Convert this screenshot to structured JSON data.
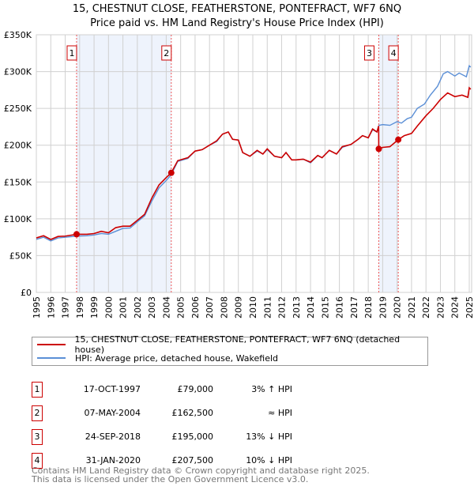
{
  "title": "15, CHESTNUT CLOSE, FEATHERSTONE, PONTEFRACT, WF7 6NQ",
  "subtitle": "Price paid vs. HM Land Registry's House Price Index (HPI)",
  "colors": {
    "property": "#cc0000",
    "hpi": "#5b8fd6",
    "shade": "#eef3fc"
  },
  "chart_data": {
    "type": "line",
    "xlim": [
      1995,
      2025.1
    ],
    "ylim": [
      0,
      350000
    ],
    "y_ticks": [
      {
        "v": 0,
        "label": "£0"
      },
      {
        "v": 50000,
        "label": "£50K"
      },
      {
        "v": 100000,
        "label": "£100K"
      },
      {
        "v": 150000,
        "label": "£150K"
      },
      {
        "v": 200000,
        "label": "£200K"
      },
      {
        "v": 250000,
        "label": "£250K"
      },
      {
        "v": 300000,
        "label": "£300K"
      },
      {
        "v": 350000,
        "label": "£350K"
      }
    ],
    "x_ticks": [
      "1995",
      "1996",
      "1997",
      "1998",
      "1999",
      "2000",
      "2001",
      "2002",
      "2003",
      "2004",
      "2005",
      "2006",
      "2007",
      "2008",
      "2009",
      "2010",
      "2011",
      "2012",
      "2013",
      "2014",
      "2015",
      "2016",
      "2017",
      "2018",
      "2019",
      "2020",
      "2021",
      "2022",
      "2023",
      "2024",
      "2025"
    ],
    "series": [
      {
        "name": "HPI: Average price, detached house, Wakefield",
        "color": "#5b8fd6",
        "x": [
          1995,
          1995.5,
          1996,
          1996.5,
          1997,
          1997.8,
          1998.5,
          1999,
          1999.5,
          2000,
          2000.5,
          2001,
          2001.5,
          2002,
          2002.5,
          2003,
          2003.5,
          2004,
          2004.35,
          2004.8,
          2005.5,
          2006,
          2006.5,
          2007,
          2007.5,
          2007.9,
          2008.3,
          2008.6,
          2009,
          2009.3,
          2009.8,
          2010.3,
          2010.7,
          2011,
          2011.5,
          2012,
          2012.3,
          2012.7,
          2013,
          2013.5,
          2014,
          2014.5,
          2014.8,
          2015.3,
          2015.8,
          2016.2,
          2016.8,
          2017.3,
          2017.6,
          2018,
          2018.3,
          2018.6,
          2018.75,
          2019,
          2019.5,
          2020,
          2020.3,
          2020.7,
          2021,
          2021.4,
          2021.9,
          2022.3,
          2022.8,
          2023.2,
          2023.5,
          2024,
          2024.3,
          2024.8,
          2025,
          2025.1
        ],
        "y": [
          72000,
          75000,
          70000,
          74000,
          75000,
          76500,
          77000,
          78000,
          80000,
          79000,
          83000,
          87000,
          87500,
          96000,
          104000,
          124000,
          142000,
          152000,
          160000,
          178000,
          182000,
          192000,
          194000,
          200000,
          205000,
          215000,
          218000,
          208000,
          207000,
          190000,
          185000,
          192000,
          188000,
          194000,
          185000,
          183000,
          190000,
          180000,
          180000,
          181000,
          176000,
          186000,
          183000,
          193000,
          188000,
          197000,
          201000,
          208000,
          213000,
          210000,
          221000,
          218000,
          227000,
          228000,
          227000,
          232000,
          230000,
          236000,
          238000,
          250000,
          256000,
          268000,
          280000,
          297000,
          300000,
          294000,
          298000,
          293000,
          308000,
          306000
        ]
      },
      {
        "name": "15, CHESTNUT CLOSE, FEATHERSTONE, PONTEFRACT, WF7 6NQ (detached house)",
        "color": "#cc0000",
        "x": [
          1995,
          1995.5,
          1996,
          1996.5,
          1997,
          1997.8,
          1998.5,
          1999,
          1999.5,
          2000,
          2000.5,
          2001,
          2001.5,
          2002,
          2002.5,
          2003,
          2003.5,
          2004,
          2004.35,
          2004.8,
          2005.5,
          2006,
          2006.5,
          2007,
          2007.5,
          2007.9,
          2008.3,
          2008.6,
          2009,
          2009.3,
          2009.8,
          2010.3,
          2010.7,
          2011,
          2011.5,
          2012,
          2012.3,
          2012.7,
          2013,
          2013.5,
          2014,
          2014.5,
          2014.8,
          2015.3,
          2015.8,
          2016.2,
          2016.8,
          2017.3,
          2017.6,
          2018,
          2018.3,
          2018.6,
          2018.72,
          2018.73,
          2019,
          2019.5,
          2020.08,
          2020.5,
          2021,
          2021.4,
          2022,
          2022.5,
          2023,
          2023.5,
          2024,
          2024.5,
          2024.9,
          2025,
          2025.1
        ],
        "y": [
          74000,
          77000,
          72000,
          76000,
          76500,
          79000,
          79000,
          80000,
          83000,
          81000,
          88000,
          90000,
          90000,
          98000,
          106000,
          128000,
          146000,
          156000,
          162500,
          179000,
          183000,
          192000,
          194000,
          200000,
          206000,
          215000,
          218000,
          208000,
          207000,
          190000,
          185000,
          193000,
          188000,
          195000,
          185000,
          183000,
          190000,
          180000,
          180000,
          181000,
          177000,
          186000,
          183000,
          193000,
          188000,
          198000,
          201000,
          208000,
          213000,
          210000,
          222000,
          218000,
          226000,
          195000,
          197000,
          198000,
          207500,
          213000,
          216000,
          226000,
          240000,
          250000,
          262000,
          271000,
          266000,
          268000,
          265000,
          278000,
          276000
        ]
      }
    ],
    "shaded_ranges": [
      [
        1997.79,
        2004.35
      ],
      [
        2018.73,
        2020.08
      ]
    ],
    "sales": [
      {
        "n": "1",
        "x": 1997.79,
        "y": 79000,
        "date": "17-OCT-1997",
        "price": "£79,000",
        "hpi": "3% ↑ HPI"
      },
      {
        "n": "2",
        "x": 2004.35,
        "y": 162500,
        "date": "07-MAY-2004",
        "price": "£162,500",
        "hpi": "≈ HPI"
      },
      {
        "n": "3",
        "x": 2018.73,
        "y": 195000,
        "date": "24-SEP-2018",
        "price": "£195,000",
        "hpi": "13% ↓ HPI"
      },
      {
        "n": "4",
        "x": 2020.08,
        "y": 207500,
        "date": "31-JAN-2020",
        "price": "£207,500",
        "hpi": "10% ↓ HPI"
      }
    ]
  },
  "legend": {
    "property": "15, CHESTNUT CLOSE, FEATHERSTONE, PONTEFRACT, WF7 6NQ (detached house)",
    "hpi": "HPI: Average price, detached house, Wakefield"
  },
  "footer": {
    "line1": "Contains HM Land Registry data © Crown copyright and database right 2025.",
    "line2": "This data is licensed under the Open Government Licence v3.0."
  }
}
